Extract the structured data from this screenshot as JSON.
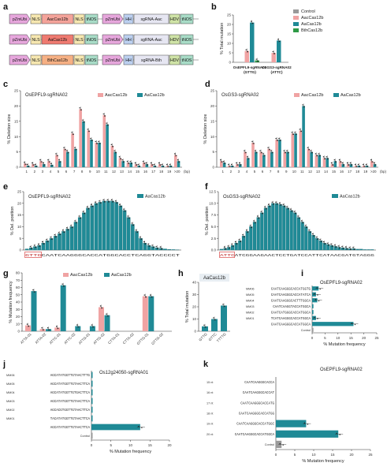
{
  "colors": {
    "control": "#9a9a9a",
    "aac": "#f0a3a3",
    "aa": "#1f8a96",
    "bth": "#2e9a46"
  },
  "panel_labels": {
    "a": "a",
    "b": "b",
    "c": "c",
    "d": "d",
    "e": "e",
    "f": "f",
    "g": "g",
    "h": "h",
    "i": "i",
    "j": "j",
    "k": "k"
  },
  "constructs": {
    "rows": [
      [
        "pZmUbi",
        "NLS",
        "AacCas12b",
        "NLS",
        "tNOS",
        "pZmUbi",
        "HH",
        "sgRNA-Aac",
        "HDV",
        "tNOS"
      ],
      [
        "pZmUbi",
        "NLS",
        "AaCas12b",
        "NLS",
        "tNOS",
        "pZmUbi",
        "HH",
        "sgRNA-Aac",
        "HDV",
        "tNOS"
      ],
      [
        "pZmUbi",
        "NLS",
        "BthCas12b",
        "NLS",
        "tNOS",
        "pZmUbi",
        "HH",
        "sgRNA-Bth",
        "HDV",
        "tNOS"
      ]
    ]
  },
  "chart_data": [
    {
      "panel": "b",
      "type": "bar",
      "ylabel": "% Total mutation",
      "ylim": [
        0,
        25
      ],
      "yticks": [
        "0",
        "5",
        "10",
        "15",
        "20",
        "25"
      ],
      "groups": [
        "OsEPFL9-sgRNA02",
        "OsGS3-sgRNA02"
      ],
      "group_sub": [
        "(GTTG)",
        "(ATTC)"
      ],
      "series": [
        {
          "name": "Control",
          "values": [
            0,
            0
          ]
        },
        {
          "name": "AacCas12b",
          "values": [
            6,
            5
          ]
        },
        {
          "name": "AaCas12b",
          "values": [
            21,
            11.5
          ]
        },
        {
          "name": "BthCas12b",
          "values": [
            1,
            0
          ]
        }
      ]
    },
    {
      "panel": "c",
      "type": "bar",
      "title": "OsEPFL9-sgRNA02",
      "ylabel": "% Deletion size",
      "ylim": [
        0,
        25
      ],
      "yticks": [
        "0",
        "5",
        "10",
        "15",
        "20",
        "25"
      ],
      "categories": [
        "1",
        "2",
        "3",
        "4",
        "5",
        "6",
        "7",
        "8",
        "9",
        "10",
        "11",
        "12",
        "13",
        "14",
        "15",
        "16",
        "17",
        "18",
        "19",
        ">20"
      ],
      "x_unit": "(bp)",
      "series": [
        {
          "name": "AacCas12b",
          "values": [
            1.2,
            1,
            2,
            2,
            4,
            6,
            11,
            19,
            12,
            8,
            17,
            7,
            3,
            1.5,
            1,
            1.5,
            1,
            1,
            0.5,
            4
          ]
        },
        {
          "name": "AaCas12b",
          "values": [
            0.5,
            0.5,
            1,
            0.8,
            2,
            5,
            6,
            15,
            9,
            8,
            14,
            5,
            2,
            1.5,
            0.5,
            1,
            0.5,
            0.5,
            0.5,
            2
          ]
        }
      ]
    },
    {
      "panel": "d",
      "type": "bar",
      "title": "OsGS3-sgRNA02",
      "ylabel": "% Deletion size",
      "ylim": [
        0,
        25
      ],
      "yticks": [
        "0",
        "5",
        "10",
        "15",
        "20",
        "25"
      ],
      "categories": [
        "1",
        "2",
        "3",
        "4",
        "5",
        "6",
        "7",
        "8",
        "9",
        "10",
        "11",
        "12",
        "13",
        "14",
        "15",
        "16",
        "17",
        "18",
        "19",
        ">20"
      ],
      "x_unit": "(bp)",
      "series": [
        {
          "name": "AacCas12b",
          "values": [
            2,
            0.5,
            1,
            5,
            8,
            5,
            6,
            9,
            5,
            11,
            12,
            6,
            4,
            3,
            1,
            2,
            1,
            0.5,
            0.5,
            2
          ]
        },
        {
          "name": "AaCas12b",
          "values": [
            1.5,
            0.5,
            1,
            3,
            5,
            4,
            5,
            9,
            5,
            11,
            20,
            5,
            4,
            3,
            2,
            1,
            1,
            0.5,
            0.5,
            1
          ]
        }
      ]
    },
    {
      "panel": "e",
      "type": "bar",
      "title": "OsEPFL9-sgRNA02",
      "ylabel": "% Del. position",
      "ylim": [
        0,
        25
      ],
      "yticks": [
        "0",
        "5",
        "10",
        "15",
        "20",
        "25"
      ],
      "sequence": "GTTGCAATCAAGGGCACCATGGCACCTCAGGTACCCCT",
      "pam": "GTTG",
      "series": [
        {
          "name": "AaCas12b",
          "values": [
            0.5,
            1,
            1.5,
            2,
            3,
            4,
            5,
            6,
            7,
            8,
            9,
            10,
            12,
            14,
            16,
            18,
            19,
            20,
            20.5,
            21,
            21,
            21,
            20.5,
            19,
            17,
            14,
            11,
            8,
            5,
            3,
            2,
            1.5,
            1,
            0.8,
            0.5,
            0.3,
            0.2,
            0.1
          ]
        }
      ]
    },
    {
      "panel": "f",
      "type": "bar",
      "title": "OsGS3-sgRNA02",
      "ylabel": "% Del. position",
      "ylim": [
        0,
        12.5
      ],
      "yticks": [
        "0.0",
        "2.5",
        "5.0",
        "7.5",
        "10.0",
        "12.5"
      ],
      "sequence": "ATTCATCGGAAGAACTCCTGATCCATTCATAACGATGTAGGG",
      "pam": "ATTC",
      "series": [
        {
          "name": "AaCas12b",
          "values": [
            0.2,
            0.4,
            0.6,
            1,
            1.5,
            2,
            3,
            4,
            5,
            6,
            7,
            8,
            9,
            9.5,
            10,
            10,
            9.8,
            9.5,
            9,
            8.5,
            8,
            7,
            6,
            5,
            4,
            3.2,
            2.5,
            2,
            1.5,
            1.2,
            1,
            0.8,
            0.6,
            0.5,
            0.4,
            0.3,
            0.3,
            0.2,
            0.2,
            0.1,
            0.1,
            0.1
          ]
        }
      ]
    },
    {
      "panel": "g",
      "type": "bar",
      "ylabel": "% Mutation frequency",
      "ylim": [
        0,
        80
      ],
      "yticks": [
        "0",
        "10",
        "20",
        "30",
        "40",
        "50",
        "60",
        "70",
        "80"
      ],
      "categories": [
        "ATTA-01",
        "ATTA-02",
        "ATTC-01",
        "ATTC-02",
        "ATTG-01",
        "ATTG-02",
        "CTTA-01",
        "CTTA-02",
        "GTTG-01",
        "GTTG-02"
      ],
      "series": [
        {
          "name": "AacCas12b",
          "values": [
            8,
            3,
            5,
            0,
            0,
            33,
            0,
            0,
            48,
            0
          ]
        },
        {
          "name": "AaCas12b",
          "values": [
            55,
            3,
            63,
            7,
            7,
            22,
            0,
            0,
            48,
            0
          ]
        }
      ]
    },
    {
      "panel": "h",
      "type": "bar",
      "title": "AaCas12b",
      "ylabel": "% Total mutation",
      "ylim": [
        0,
        40
      ],
      "yticks": [
        "0",
        "10",
        "20",
        "30",
        "40"
      ],
      "categories": [
        "GTTG",
        "GTTC",
        "TTTTG"
      ],
      "series": [
        {
          "name": "AaCas12b",
          "values": [
            4,
            10,
            21
          ]
        }
      ]
    },
    {
      "panel": "i",
      "type": "bar",
      "orientation": "horizontal",
      "title": "OsEPFL9-sgRNA02",
      "xlabel": "% Mutation frequency",
      "xlim": [
        0,
        25
      ],
      "xticks": [
        "0",
        "5",
        "10",
        "15",
        "20",
        "25"
      ],
      "categories": [
        "MM06",
        "MM05",
        "MM04",
        "MM03",
        "MM02",
        "MM01",
        "",
        ""
      ],
      "sequences": [
        "CAATCAAGGGCACCATGGTG",
        "CAATCAAGGGCACCATATCA",
        "CAATCAAGGGCACTTTGGCA",
        "CAATCAAGGTACCATGGCA",
        "CAATCATGGGCACCATGGCA",
        "TCATCAAGGGCACCATGGCA",
        "CAATCAAGGGCACCATGGCA",
        "Control"
      ],
      "series": [
        {
          "name": "AaCas12b",
          "values": [
            2.5,
            1.5,
            2,
            0.5,
            0.5,
            1.5,
            16,
            0.5
          ]
        }
      ]
    },
    {
      "panel": "j",
      "type": "bar",
      "orientation": "horizontal",
      "title": "Os12g24050-sgRNA01",
      "xlabel": "% Mutation frequency",
      "xlim": [
        0,
        20
      ],
      "xticks": [
        "0",
        "5",
        "10",
        "15",
        "20"
      ],
      "categories": [
        "MM06",
        "MM05",
        "MM04",
        "MM03",
        "MM02",
        "MM01",
        "",
        ""
      ],
      "sequences": [
        "AGCATATGGTTGTAACTTTG",
        "AGCATATGGTTGTAACTTCA",
        "AGCATATGGTTGTGACTTCA",
        "AGCATATGGTTGTAACTTCA",
        "AGCACGTGGTTGTAACTTCA",
        "TACATATGGTTGTAACTTCA",
        "AGCATATGGTTGTAACTTCA",
        "Control"
      ],
      "series": [
        {
          "name": "AaCas12b",
          "values": [
            0.3,
            0.3,
            0.3,
            0.3,
            0.3,
            0.3,
            12.5,
            0.3
          ]
        }
      ]
    },
    {
      "panel": "k",
      "type": "bar",
      "orientation": "horizontal",
      "title": "OsEPFL9-sgRNA02",
      "xlabel": "% Mutation frequency",
      "xlim": [
        0,
        25
      ],
      "xticks": [
        "0",
        "5",
        "10",
        "15",
        "20",
        "25"
      ],
      "categories": [
        "15 nt",
        "16 nt",
        "17 nt",
        "18 nt",
        "19 nt",
        "20 nt",
        ""
      ],
      "sequences": [
        "CAATCAAGGGCACCA",
        "CAATCAAGGGCACCAT",
        "CAATCAAGGGCACCATG",
        "CAATCAAGGGCACCATGG",
        "CAATCAAGGGCACCATGGC",
        "CAATCAAGGGCACCATGGCA",
        "Control"
      ],
      "series": [
        {
          "name": "AaCas12b",
          "values": [
            0,
            0,
            0,
            0,
            8,
            16.5,
            1.5
          ]
        }
      ]
    }
  ]
}
